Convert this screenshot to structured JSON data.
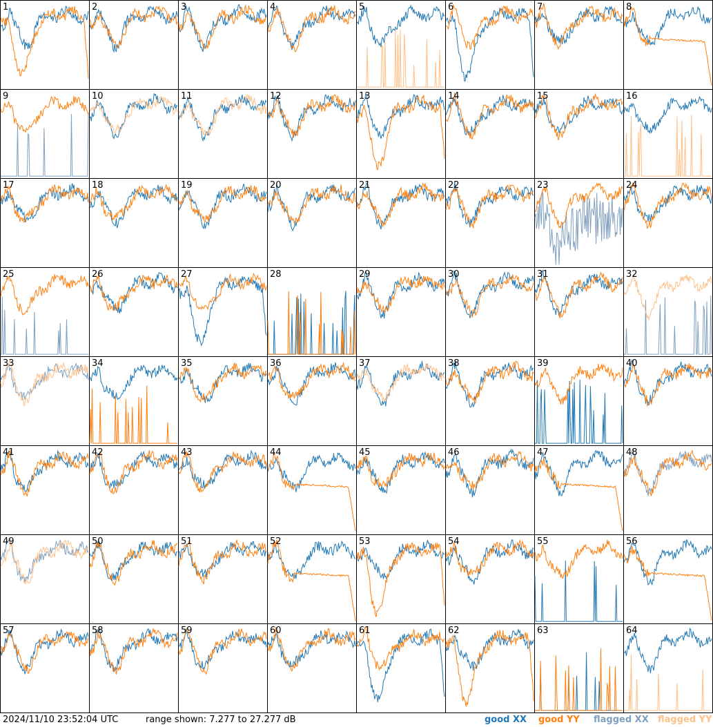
{
  "footer": {
    "timestamp": "2024/11/10 23:52:04 UTC",
    "range_text": "range shown: 7.277 to 27.277 dB",
    "legend": {
      "good_xx": "good XX",
      "good_yy": "good YY",
      "flagged_xx": "flagged XX",
      "flagged_yy": "flagged YY"
    }
  },
  "colors": {
    "good_xx": "#1f77b4",
    "good_yy": "#ff7f0e",
    "flagged_xx": "#7f9fbf",
    "flagged_yy": "#ffbf87",
    "frame": "#000000",
    "background": "#ffffff"
  },
  "chart_data": {
    "type": "line",
    "layout": "8x8 small-multiples grid of per-antenna spectra",
    "y_range_db": [
      7.277,
      27.277
    ],
    "y_unit": "dB",
    "axes_ticks": false,
    "grid": false,
    "legend_placement": "bottom-right",
    "panels": [
      {
        "label": "1",
        "xx": "good",
        "yy": "good",
        "xx_shape": "normal",
        "yy_shape": "dip"
      },
      {
        "label": "2",
        "xx": "good",
        "yy": "good",
        "xx_shape": "normal",
        "yy_shape": "normal"
      },
      {
        "label": "3",
        "xx": "good",
        "yy": "good",
        "xx_shape": "normal",
        "yy_shape": "normal"
      },
      {
        "label": "4",
        "xx": "good",
        "yy": "good",
        "xx_shape": "normal",
        "yy_shape": "normal"
      },
      {
        "label": "5",
        "xx": "good",
        "yy": "flagged",
        "xx_shape": "normal",
        "yy_shape": "spiky"
      },
      {
        "label": "6",
        "xx": "good",
        "yy": "good",
        "xx_shape": "dip",
        "yy_shape": "normal"
      },
      {
        "label": "7",
        "xx": "good",
        "yy": "good",
        "xx_shape": "normal",
        "yy_shape": "normal"
      },
      {
        "label": "8",
        "xx": "good",
        "yy": "good",
        "xx_shape": "normal",
        "yy_shape": "flat"
      },
      {
        "label": "9",
        "xx": "flagged",
        "yy": "good",
        "xx_shape": "spiky",
        "yy_shape": "normal"
      },
      {
        "label": "10",
        "xx": "good",
        "yy": "flagged",
        "xx_shape": "normal",
        "yy_shape": "normal"
      },
      {
        "label": "11",
        "xx": "good",
        "yy": "flagged",
        "xx_shape": "normal",
        "yy_shape": "normal"
      },
      {
        "label": "12",
        "xx": "good",
        "yy": "good",
        "xx_shape": "normal",
        "yy_shape": "normal"
      },
      {
        "label": "13",
        "xx": "good",
        "yy": "good",
        "xx_shape": "normal",
        "yy_shape": "dip"
      },
      {
        "label": "14",
        "xx": "good",
        "yy": "good",
        "xx_shape": "normal",
        "yy_shape": "normal"
      },
      {
        "label": "15",
        "xx": "good",
        "yy": "good",
        "xx_shape": "normal",
        "yy_shape": "normal"
      },
      {
        "label": "16",
        "xx": "good",
        "yy": "flagged",
        "xx_shape": "normal",
        "yy_shape": "spiky"
      },
      {
        "label": "17",
        "xx": "good",
        "yy": "good",
        "xx_shape": "normal",
        "yy_shape": "normal"
      },
      {
        "label": "18",
        "xx": "good",
        "yy": "good",
        "xx_shape": "normal",
        "yy_shape": "normal"
      },
      {
        "label": "19",
        "xx": "good",
        "yy": "good",
        "xx_shape": "normal",
        "yy_shape": "normal"
      },
      {
        "label": "20",
        "xx": "good",
        "yy": "good",
        "xx_shape": "normal",
        "yy_shape": "normal"
      },
      {
        "label": "21",
        "xx": "good",
        "yy": "good",
        "xx_shape": "normal",
        "yy_shape": "normal"
      },
      {
        "label": "22",
        "xx": "good",
        "yy": "good",
        "xx_shape": "normal",
        "yy_shape": "normal"
      },
      {
        "label": "23",
        "xx": "flagged",
        "yy": "good",
        "xx_shape": "noisy",
        "yy_shape": "normal"
      },
      {
        "label": "24",
        "xx": "good",
        "yy": "good",
        "xx_shape": "normal",
        "yy_shape": "normal"
      },
      {
        "label": "25",
        "xx": "flagged",
        "yy": "good",
        "xx_shape": "spiky",
        "yy_shape": "normal"
      },
      {
        "label": "26",
        "xx": "good",
        "yy": "good",
        "xx_shape": "normal",
        "yy_shape": "normal"
      },
      {
        "label": "27",
        "xx": "good",
        "yy": "good",
        "xx_shape": "dip",
        "yy_shape": "normal"
      },
      {
        "label": "28",
        "xx": "good",
        "yy": "good",
        "xx_shape": "spiky",
        "yy_shape": "spiky"
      },
      {
        "label": "29",
        "xx": "good",
        "yy": "good",
        "xx_shape": "normal",
        "yy_shape": "normal"
      },
      {
        "label": "30",
        "xx": "good",
        "yy": "good",
        "xx_shape": "normal",
        "yy_shape": "normal"
      },
      {
        "label": "31",
        "xx": "good",
        "yy": "good",
        "xx_shape": "normal",
        "yy_shape": "normal"
      },
      {
        "label": "32",
        "xx": "flagged",
        "yy": "flagged",
        "xx_shape": "spiky",
        "yy_shape": "normal"
      },
      {
        "label": "33",
        "xx": "flagged",
        "yy": "flagged",
        "xx_shape": "normal",
        "yy_shape": "normal"
      },
      {
        "label": "34",
        "xx": "good",
        "yy": "good",
        "xx_shape": "normal",
        "yy_shape": "spiky"
      },
      {
        "label": "35",
        "xx": "good",
        "yy": "good",
        "xx_shape": "normal",
        "yy_shape": "normal"
      },
      {
        "label": "36",
        "xx": "good",
        "yy": "good",
        "xx_shape": "normal",
        "yy_shape": "normal"
      },
      {
        "label": "37",
        "xx": "good",
        "yy": "flagged",
        "xx_shape": "normal",
        "yy_shape": "normal"
      },
      {
        "label": "38",
        "xx": "good",
        "yy": "good",
        "xx_shape": "normal",
        "yy_shape": "normal"
      },
      {
        "label": "39",
        "xx": "good",
        "yy": "good",
        "xx_shape": "spiky",
        "yy_shape": "normal"
      },
      {
        "label": "40",
        "xx": "good",
        "yy": "good",
        "xx_shape": "normal",
        "yy_shape": "normal"
      },
      {
        "label": "41",
        "xx": "good",
        "yy": "good",
        "xx_shape": "normal",
        "yy_shape": "normal"
      },
      {
        "label": "42",
        "xx": "good",
        "yy": "good",
        "xx_shape": "normal",
        "yy_shape": "normal"
      },
      {
        "label": "43",
        "xx": "good",
        "yy": "good",
        "xx_shape": "normal",
        "yy_shape": "normal"
      },
      {
        "label": "44",
        "xx": "good",
        "yy": "good",
        "xx_shape": "normal",
        "yy_shape": "flat"
      },
      {
        "label": "45",
        "xx": "good",
        "yy": "good",
        "xx_shape": "normal",
        "yy_shape": "normal"
      },
      {
        "label": "46",
        "xx": "good",
        "yy": "good",
        "xx_shape": "normal",
        "yy_shape": "normal"
      },
      {
        "label": "47",
        "xx": "good",
        "yy": "good",
        "xx_shape": "normal",
        "yy_shape": "flat"
      },
      {
        "label": "48",
        "xx": "flagged",
        "yy": "good",
        "xx_shape": "normal",
        "yy_shape": "normal"
      },
      {
        "label": "49",
        "xx": "flagged",
        "yy": "flagged",
        "xx_shape": "normal",
        "yy_shape": "normal"
      },
      {
        "label": "50",
        "xx": "good",
        "yy": "good",
        "xx_shape": "normal",
        "yy_shape": "normal"
      },
      {
        "label": "51",
        "xx": "good",
        "yy": "good",
        "xx_shape": "normal",
        "yy_shape": "normal"
      },
      {
        "label": "52",
        "xx": "good",
        "yy": "good",
        "xx_shape": "normal",
        "yy_shape": "flat"
      },
      {
        "label": "53",
        "xx": "good",
        "yy": "good",
        "xx_shape": "normal",
        "yy_shape": "dip"
      },
      {
        "label": "54",
        "xx": "good",
        "yy": "good",
        "xx_shape": "normal",
        "yy_shape": "normal"
      },
      {
        "label": "55",
        "xx": "good",
        "yy": "good",
        "xx_shape": "spiky",
        "yy_shape": "normal"
      },
      {
        "label": "56",
        "xx": "good",
        "yy": "good",
        "xx_shape": "normal",
        "yy_shape": "flat"
      },
      {
        "label": "57",
        "xx": "good",
        "yy": "good",
        "xx_shape": "normal",
        "yy_shape": "normal"
      },
      {
        "label": "58",
        "xx": "good",
        "yy": "good",
        "xx_shape": "normal",
        "yy_shape": "normal"
      },
      {
        "label": "59",
        "xx": "good",
        "yy": "good",
        "xx_shape": "normal",
        "yy_shape": "normal"
      },
      {
        "label": "60",
        "xx": "good",
        "yy": "good",
        "xx_shape": "normal",
        "yy_shape": "normal"
      },
      {
        "label": "61",
        "xx": "good",
        "yy": "good",
        "xx_shape": "dip",
        "yy_shape": "normal"
      },
      {
        "label": "62",
        "xx": "good",
        "yy": "good",
        "xx_shape": "normal",
        "yy_shape": "dip"
      },
      {
        "label": "63",
        "xx": "good",
        "yy": "good",
        "xx_shape": "spiky",
        "yy_shape": "spiky"
      },
      {
        "label": "64",
        "xx": "good",
        "yy": "flagged",
        "xx_shape": "normal",
        "yy_shape": "spiky"
      }
    ]
  }
}
